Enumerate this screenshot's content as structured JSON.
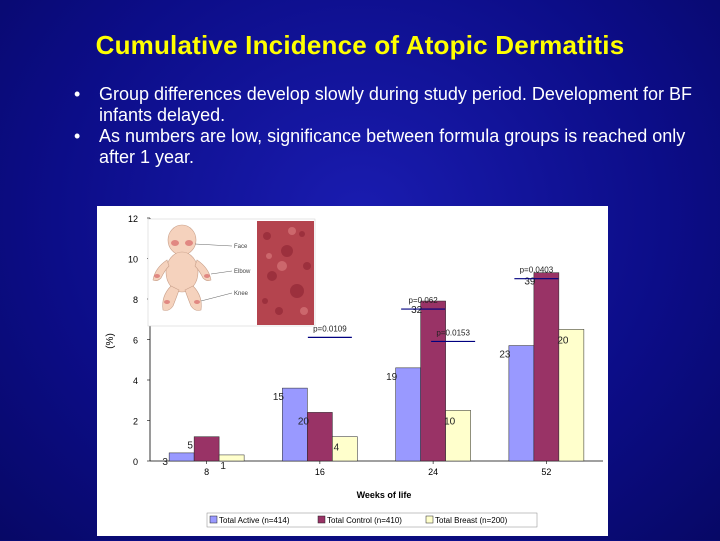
{
  "slide": {
    "title": "Cumulative Incidence of Atopic Dermatitis",
    "bullets": [
      "Group differences develop slowly during study period. Development for BF infants delayed.",
      "As numbers are low, significance between formula groups is reached only after 1 year."
    ]
  },
  "colors": {
    "background": "#0e0f8c",
    "title": "#ffff00",
    "bullet_text": "#ffffff",
    "active": "#9999ff",
    "control": "#993366",
    "breast": "#ffffcc"
  },
  "chart_data": {
    "type": "bar",
    "xlabel": "Weeks of life",
    "ylabel": "(%)",
    "ylim": [
      0,
      12
    ],
    "yticks": [
      "0",
      "2",
      "4",
      "6",
      "8",
      "10",
      "12"
    ],
    "categories": [
      "8",
      "16",
      "24",
      "52"
    ],
    "series": [
      {
        "name": "Total Active (n=414)",
        "values": [
          0.4,
          3.6,
          4.6,
          5.7
        ],
        "labels": [
          "3",
          "15",
          "19",
          "23"
        ]
      },
      {
        "name": "Total Control (n=410)",
        "values": [
          1.2,
          2.4,
          7.9,
          9.3
        ],
        "labels": [
          "5",
          "20",
          "32",
          "39"
        ]
      },
      {
        "name": "Total Breast (n=200)",
        "values": [
          0.3,
          1.2,
          2.5,
          6.5
        ],
        "labels": [
          "1",
          "4",
          "10",
          "20"
        ]
      }
    ],
    "annotations": [
      "p=0.0109",
      "p=0.062",
      "p=0.0153",
      "p=0.0403"
    ],
    "legend_position": "bottom"
  },
  "figure_labels": [
    "Face",
    "Elbow",
    "Knee"
  ]
}
